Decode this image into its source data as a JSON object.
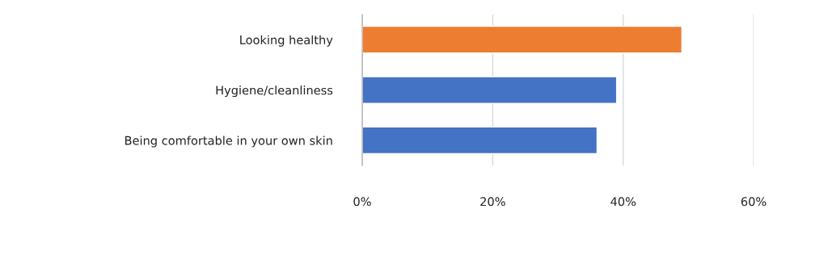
{
  "chart_data": {
    "type": "bar",
    "orientation": "horizontal",
    "categories": [
      "Looking healthy",
      "Hygiene/cleanliness",
      "Being comfortable in your own skin"
    ],
    "values": [
      49,
      39,
      36
    ],
    "colors": [
      "#ed7d31",
      "#4472c4",
      "#4472c4"
    ],
    "xlim": [
      0,
      60
    ],
    "xticks": [
      {
        "value": 0,
        "label": "0%"
      },
      {
        "value": 20,
        "label": "20%"
      },
      {
        "value": 40,
        "label": "40%"
      },
      {
        "value": 60,
        "label": "60%"
      }
    ],
    "grid": "x",
    "legend": false
  }
}
